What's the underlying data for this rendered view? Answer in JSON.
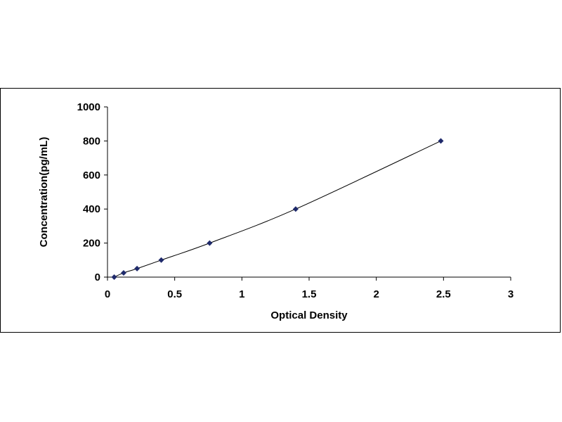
{
  "chart_data": {
    "type": "scatter",
    "title": "",
    "xlabel": "Optical Density",
    "ylabel": "Concentration(pg/mL)",
    "xlim": [
      0,
      3
    ],
    "ylim": [
      0,
      1000
    ],
    "x_ticks": [
      "0",
      "0.5",
      "1",
      "1.5",
      "2",
      "2.5",
      "3"
    ],
    "y_ticks": [
      "0",
      "200",
      "400",
      "600",
      "800",
      "1000"
    ],
    "grid": false,
    "legend": "none",
    "trendline": true,
    "series": [
      {
        "points": [
          {
            "x": 0.05,
            "y": 0
          },
          {
            "x": 0.12,
            "y": 25
          },
          {
            "x": 0.22,
            "y": 50
          },
          {
            "x": 0.4,
            "y": 100
          },
          {
            "x": 0.76,
            "y": 200
          },
          {
            "x": 1.4,
            "y": 400
          },
          {
            "x": 2.48,
            "y": 800
          }
        ]
      }
    ],
    "colors": {
      "marker": "#1f2a6b",
      "line": "#000000",
      "axis": "#000000"
    }
  }
}
